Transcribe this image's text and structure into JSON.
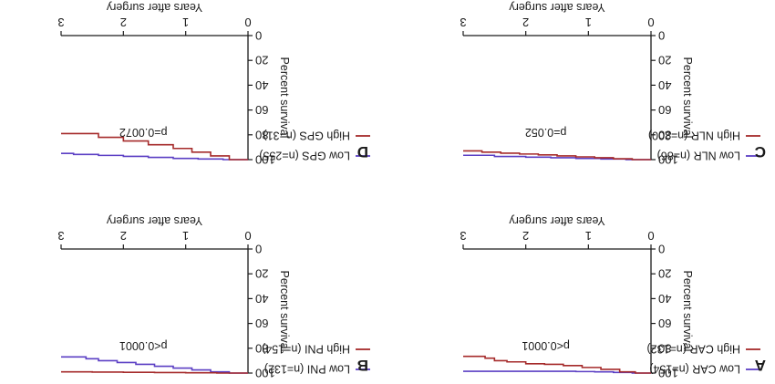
{
  "chart_data": [
    {
      "type": "line",
      "panel_label": "A",
      "xlabel": "Years after surgery",
      "ylabel": "Percent survival",
      "xlim": [
        0,
        3
      ],
      "ylim": [
        0,
        100
      ],
      "xticks": [
        "0",
        "1",
        "2",
        "3"
      ],
      "yticks": [
        "0",
        "20",
        "40",
        "60",
        "80",
        "100"
      ],
      "annotation": "p<0.0001",
      "series": [
        {
          "name": "Low CAR (n=154)",
          "color": "#5b3fc4",
          "x": [
            0,
            0.3,
            0.6,
            0.9,
            1.2,
            3.0
          ],
          "y": [
            100,
            99.5,
            99,
            98.8,
            98.6,
            98.6
          ]
        },
        {
          "name": "High CAR (n=132)",
          "color": "#a52a2a",
          "x": [
            0,
            0.25,
            0.5,
            0.8,
            1.1,
            1.4,
            1.7,
            2.0,
            2.3,
            2.5,
            2.65,
            3.0
          ],
          "y": [
            100,
            99,
            97,
            95.5,
            94,
            93,
            92.5,
            91,
            90,
            88,
            86.5,
            86.5
          ]
        }
      ]
    },
    {
      "type": "line",
      "panel_label": "B",
      "xlabel": "Years after surgery",
      "ylabel": "Percent survival",
      "xlim": [
        0,
        3
      ],
      "ylim": [
        0,
        100
      ],
      "xticks": [
        "0",
        "1",
        "2",
        "3"
      ],
      "yticks": [
        "0",
        "20",
        "40",
        "60",
        "80",
        "100"
      ],
      "annotation": "p<0.0001",
      "series": [
        {
          "name": "Low PNI (n=132)",
          "color": "#5b3fc4",
          "x": [
            0,
            0.3,
            0.6,
            0.9,
            1.2,
            1.5,
            1.8,
            2.1,
            2.4,
            2.6,
            3.0
          ],
          "y": [
            100,
            99,
            97.5,
            96,
            94.5,
            93,
            91.5,
            90,
            88.5,
            87,
            87
          ]
        },
        {
          "name": "High PNI (n=154)",
          "color": "#a52a2a",
          "x": [
            0,
            0.5,
            1.0,
            1.5,
            2.0,
            2.5,
            3.0
          ],
          "y": [
            100,
            99.8,
            99.6,
            99.4,
            99.2,
            99,
            99
          ]
        }
      ]
    },
    {
      "type": "line",
      "panel_label": "C",
      "xlabel": "Years after surgery",
      "ylabel": "Percent survival",
      "xlim": [
        0,
        3
      ],
      "ylim": [
        0,
        100
      ],
      "xticks": [
        "0",
        "1",
        "2",
        "3"
      ],
      "yticks": [
        "0",
        "20",
        "40",
        "60",
        "80",
        "100"
      ],
      "annotation": "p=0.052",
      "series": [
        {
          "name": "Low NLR (n=86)",
          "color": "#5b3fc4",
          "x": [
            0,
            0.4,
            0.8,
            1.2,
            1.6,
            2.0,
            2.5,
            3.0
          ],
          "y": [
            100,
            99.5,
            99,
            98.5,
            98,
            97.5,
            96.5,
            96.5
          ]
        },
        {
          "name": "High NLR (n=200)",
          "color": "#a52a2a",
          "x": [
            0,
            0.3,
            0.6,
            0.9,
            1.2,
            1.5,
            1.8,
            2.1,
            2.4,
            2.7,
            3.0
          ],
          "y": [
            100,
            99.3,
            98.5,
            97.8,
            97,
            96.2,
            95.5,
            94.8,
            94,
            93,
            93
          ]
        }
      ]
    },
    {
      "type": "line",
      "panel_label": "D",
      "xlabel": "Years after surgery",
      "ylabel": "Percent survival",
      "xlim": [
        0,
        3
      ],
      "ylim": [
        0,
        100
      ],
      "xticks": [
        "0",
        "1",
        "2",
        "3"
      ],
      "yticks": [
        "0",
        "20",
        "40",
        "60",
        "80",
        "100"
      ],
      "annotation": "p=0.0072",
      "series": [
        {
          "name": "Low GPS (n=255)",
          "color": "#5b3fc4",
          "x": [
            0,
            0.4,
            0.8,
            1.2,
            1.6,
            2.0,
            2.4,
            2.8,
            3.0
          ],
          "y": [
            100,
            99.5,
            99,
            98.2,
            97.4,
            96.6,
            95.8,
            95,
            95
          ]
        },
        {
          "name": "High GPS (n=31)",
          "color": "#a52a2a",
          "x": [
            0,
            0.3,
            0.6,
            0.9,
            1.2,
            1.6,
            2.0,
            2.4,
            3.0
          ],
          "y": [
            100,
            97,
            94,
            91,
            88,
            85,
            82,
            79,
            79
          ]
        }
      ]
    }
  ]
}
